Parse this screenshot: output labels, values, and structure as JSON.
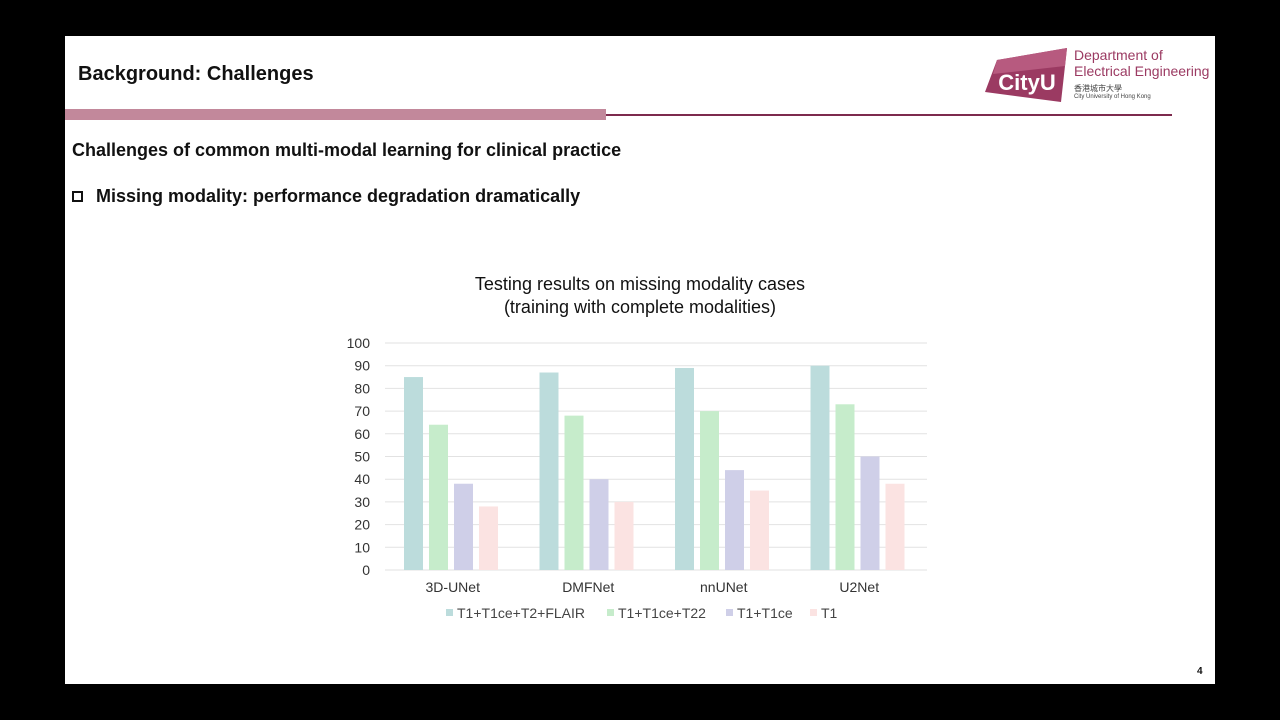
{
  "slide": {
    "title": "Background: Challenges",
    "subtitle": "Challenges of common multi-modal learning for clinical practice",
    "bullet": "Missing modality: performance degradation dramatically",
    "page_number": "4"
  },
  "logo": {
    "wordmark": "CityU",
    "dept_line1": "Department of",
    "dept_line2": "Electrical Engineering",
    "chinese_name": "香港城市大學",
    "english_name": "City University of Hong Kong"
  },
  "colors": {
    "accent_rule": "#c2889b",
    "accent_dark": "#7d2a4d",
    "logo_brand": "#9b3a62"
  },
  "chart_data": {
    "type": "bar",
    "title_line1": "Testing results on missing modality cases",
    "title_line2": "(training with complete modalities)",
    "categories": [
      "3D-UNet",
      "DMFNet",
      "nnUNet",
      "U2Net"
    ],
    "series": [
      {
        "name": "T1+T1ce+T2+FLAIR",
        "values": [
          85,
          87,
          89,
          90
        ],
        "color": "#bcdcdc"
      },
      {
        "name": "T1+T1ce+T22",
        "values": [
          64,
          68,
          70,
          73
        ],
        "color": "#c6eccb"
      },
      {
        "name": "T1+T1ce",
        "values": [
          38,
          40,
          44,
          50
        ],
        "color": "#cfcfe8"
      },
      {
        "name": "T1",
        "values": [
          28,
          30,
          35,
          38
        ],
        "color": "#fbe3e2"
      }
    ],
    "ylim": [
      0,
      100
    ],
    "yticks": [
      "0",
      "10",
      "20",
      "30",
      "40",
      "50",
      "60",
      "70",
      "80",
      "90",
      "100"
    ],
    "grid": true,
    "legend": "bottom"
  }
}
